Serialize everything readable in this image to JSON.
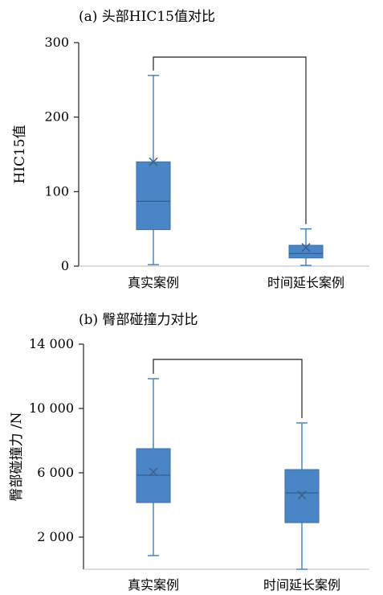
{
  "chart_data": [
    {
      "type": "box",
      "title": "(a) 头部HIC15值对比",
      "ylabel": "HIC15值",
      "xlabel": "",
      "ylim": [
        0,
        300
      ],
      "yticks": [
        0,
        100,
        200,
        300
      ],
      "ytick_labels": [
        "0",
        "100",
        "200",
        "300"
      ],
      "categories": [
        "真实案例",
        "时间延长案例"
      ],
      "boxes": [
        {
          "min": 2,
          "q1": 49,
          "median": 87,
          "q3": 140,
          "max": 256,
          "mean": 140
        },
        {
          "min": 1,
          "q1": 11,
          "median": 17,
          "q3": 28,
          "max": 50,
          "mean": 25
        }
      ],
      "significance_bracket": true,
      "color": "#4a86c5",
      "grid": false
    },
    {
      "type": "box",
      "title": "(b) 臀部碰撞力对比",
      "ylabel": "臀部碰撞力 /N",
      "xlabel": "",
      "ylim": [
        0,
        14000
      ],
      "yticks": [
        2000,
        6000,
        10000,
        14000
      ],
      "ytick_labels": [
        "2 000",
        "6 000",
        "10 000",
        "14 000"
      ],
      "categories": [
        "真实案例",
        "时间延长案例"
      ],
      "boxes": [
        {
          "min": 850,
          "q1": 4150,
          "median": 5850,
          "q3": 7500,
          "max": 11850,
          "mean": 6050
        },
        {
          "min": 0,
          "q1": 2900,
          "median": 4750,
          "q3": 6200,
          "max": 9100,
          "mean": 4600
        }
      ],
      "significance_bracket": true,
      "color": "#4a86c5",
      "grid": false
    }
  ]
}
